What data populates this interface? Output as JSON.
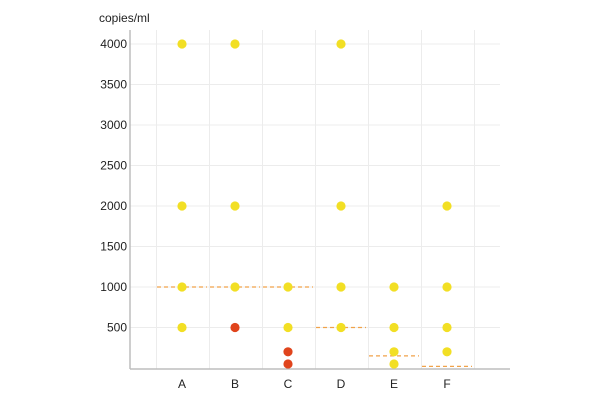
{
  "chart_data": {
    "type": "scatter",
    "ylabel": "copies/ml",
    "categories": [
      "A",
      "B",
      "C",
      "D",
      "E",
      "F"
    ],
    "y_ticks": [
      500,
      1000,
      1500,
      2000,
      2500,
      3000,
      3500,
      4000
    ],
    "ylim": [
      0,
      4200
    ],
    "grid": true,
    "colors": {
      "yellow": "#f2df24",
      "red": "#e0441c",
      "median": "#f0a24a"
    },
    "series": [
      {
        "category": "A",
        "points": [
          {
            "y": 4000,
            "color": "yellow"
          },
          {
            "y": 2000,
            "color": "yellow"
          },
          {
            "y": 1000,
            "color": "yellow"
          },
          {
            "y": 500,
            "color": "yellow"
          }
        ],
        "median": 1000
      },
      {
        "category": "B",
        "points": [
          {
            "y": 4000,
            "color": "yellow"
          },
          {
            "y": 2000,
            "color": "yellow"
          },
          {
            "y": 1000,
            "color": "yellow"
          },
          {
            "y": 500,
            "color": "red"
          }
        ],
        "median": 1000
      },
      {
        "category": "C",
        "points": [
          {
            "y": 1000,
            "color": "yellow"
          },
          {
            "y": 500,
            "color": "yellow"
          },
          {
            "y": 200,
            "color": "red"
          },
          {
            "y": 50,
            "color": "red"
          }
        ],
        "median": 1000
      },
      {
        "category": "D",
        "points": [
          {
            "y": 4000,
            "color": "yellow"
          },
          {
            "y": 2000,
            "color": "yellow"
          },
          {
            "y": 1000,
            "color": "yellow"
          },
          {
            "y": 500,
            "color": "yellow"
          }
        ],
        "median": 500
      },
      {
        "category": "E",
        "points": [
          {
            "y": 1000,
            "color": "yellow"
          },
          {
            "y": 500,
            "color": "yellow"
          },
          {
            "y": 200,
            "color": "yellow"
          },
          {
            "y": 50,
            "color": "yellow"
          }
        ],
        "median": 150
      },
      {
        "category": "F",
        "points": [
          {
            "y": 2000,
            "color": "yellow"
          },
          {
            "y": 1000,
            "color": "yellow"
          },
          {
            "y": 500,
            "color": "yellow"
          },
          {
            "y": 200,
            "color": "yellow"
          }
        ],
        "median": 20
      }
    ]
  }
}
